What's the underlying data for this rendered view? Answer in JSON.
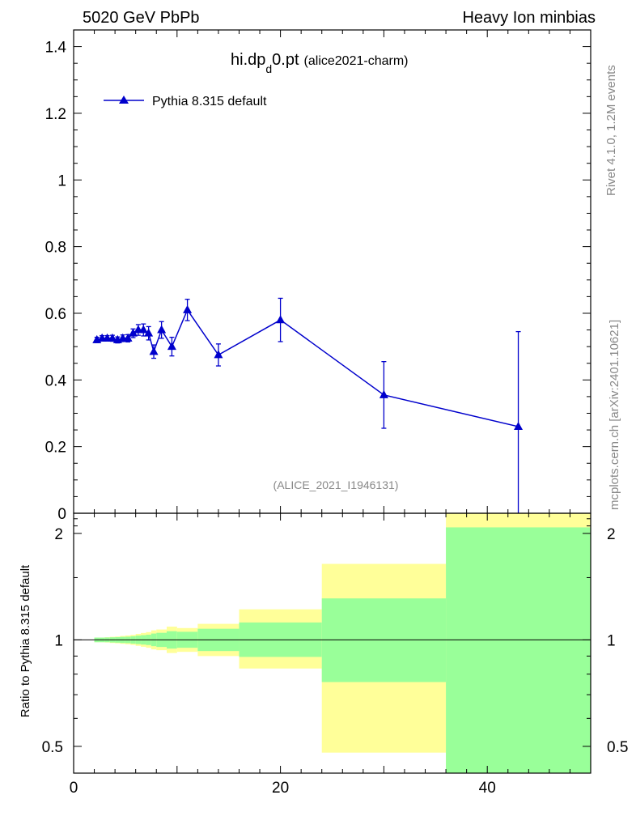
{
  "header": {
    "left_label": "5020 GeV PbPb",
    "right_label": "Heavy Ion minbias"
  },
  "side_labels": {
    "rivet": "Rivet 4.1.0,  1.2M events",
    "mcplots": "mcplots.cern.ch [arXiv:2401.10621]"
  },
  "colors": {
    "series": "#0000cc",
    "band_outer": "#ffff99",
    "band_inner": "#99ff99",
    "watermark": "#888888"
  },
  "chart_data": [
    {
      "type": "line",
      "title_main": "hi.dp",
      "title_sub": "d",
      "title_end": "0.pt",
      "title_tag": "(alice2021-charm)",
      "watermark": "(ALICE_2021_I1946131)",
      "xlim": [
        0,
        50
      ],
      "ylim": [
        0,
        1.45
      ],
      "yticks": [
        0,
        0.2,
        0.4,
        0.6,
        0.8,
        1,
        1.2,
        1.4
      ],
      "ytick_labels": [
        "0",
        "0.2",
        "0.4",
        "0.6",
        "0.8",
        "1",
        "1.2",
        "1.4"
      ],
      "legend_position": "top-left",
      "series": [
        {
          "name": "Pythia 8.315 default",
          "marker": "triangle",
          "x": [
            2.25,
            2.75,
            3.25,
            3.75,
            4.25,
            4.75,
            5.25,
            5.75,
            6.25,
            6.75,
            7.25,
            7.75,
            8.5,
            9.5,
            11,
            14,
            20,
            30,
            43
          ],
          "y": [
            0.52,
            0.525,
            0.525,
            0.525,
            0.52,
            0.525,
            0.525,
            0.54,
            0.55,
            0.55,
            0.54,
            0.485,
            0.55,
            0.5,
            0.61,
            0.475,
            0.58,
            0.355,
            0.26
          ],
          "err": [
            0.008,
            0.008,
            0.008,
            0.009,
            0.009,
            0.01,
            0.011,
            0.013,
            0.016,
            0.018,
            0.02,
            0.02,
            0.025,
            0.028,
            0.032,
            0.033,
            0.065,
            0.1,
            0.285
          ]
        }
      ]
    },
    {
      "type": "area",
      "ylabel": "Ratio to Pythia 8.315 default",
      "xlim": [
        0,
        50
      ],
      "ylim": [
        0.42,
        2.28
      ],
      "yscale": "log",
      "yticks": [
        0.5,
        1,
        2
      ],
      "ytick_labels": [
        "0.5",
        "1",
        "2"
      ],
      "xticks": [
        0,
        20,
        40
      ],
      "xtick_labels": [
        "0",
        "20",
        "40"
      ],
      "reference_line": 1,
      "bins": [
        {
          "lo": 2,
          "hi": 2.5,
          "inner": [
            0.985,
            1.015
          ],
          "outer": [
            0.985,
            1.015
          ]
        },
        {
          "lo": 2.5,
          "hi": 3,
          "inner": [
            0.985,
            1.015
          ],
          "outer": [
            0.985,
            1.015
          ]
        },
        {
          "lo": 3,
          "hi": 3.5,
          "inner": [
            0.985,
            1.016
          ],
          "outer": [
            0.983,
            1.017
          ]
        },
        {
          "lo": 3.5,
          "hi": 4,
          "inner": [
            0.983,
            1.017
          ],
          "outer": [
            0.98,
            1.02
          ]
        },
        {
          "lo": 4,
          "hi": 4.5,
          "inner": [
            0.982,
            1.018
          ],
          "outer": [
            0.978,
            1.022
          ]
        },
        {
          "lo": 4.5,
          "hi": 5,
          "inner": [
            0.98,
            1.02
          ],
          "outer": [
            0.975,
            1.026
          ]
        },
        {
          "lo": 5,
          "hi": 5.5,
          "inner": [
            0.979,
            1.021
          ],
          "outer": [
            0.972,
            1.029
          ]
        },
        {
          "lo": 5.5,
          "hi": 6,
          "inner": [
            0.976,
            1.024
          ],
          "outer": [
            0.968,
            1.033
          ]
        },
        {
          "lo": 6,
          "hi": 6.5,
          "inner": [
            0.973,
            1.028
          ],
          "outer": [
            0.962,
            1.04
          ]
        },
        {
          "lo": 6.5,
          "hi": 7,
          "inner": [
            0.97,
            1.031
          ],
          "outer": [
            0.956,
            1.046
          ]
        },
        {
          "lo": 7,
          "hi": 7.5,
          "inner": [
            0.967,
            1.034
          ],
          "outer": [
            0.95,
            1.052
          ]
        },
        {
          "lo": 7.5,
          "hi": 8,
          "inner": [
            0.96,
            1.042
          ],
          "outer": [
            0.94,
            1.064
          ]
        },
        {
          "lo": 8,
          "hi": 9,
          "inner": [
            0.955,
            1.047
          ],
          "outer": [
            0.935,
            1.07
          ]
        },
        {
          "lo": 9,
          "hi": 10,
          "inner": [
            0.945,
            1.058
          ],
          "outer": [
            0.918,
            1.09
          ]
        },
        {
          "lo": 10,
          "hi": 12,
          "inner": [
            0.95,
            1.054
          ],
          "outer": [
            0.925,
            1.08
          ]
        },
        {
          "lo": 12,
          "hi": 16,
          "inner": [
            0.93,
            1.075
          ],
          "outer": [
            0.9,
            1.11
          ]
        },
        {
          "lo": 16,
          "hi": 24,
          "inner": [
            0.895,
            1.12
          ],
          "outer": [
            0.83,
            1.22
          ]
        },
        {
          "lo": 24,
          "hi": 36,
          "inner": [
            0.76,
            1.31
          ],
          "outer": [
            0.48,
            1.64
          ]
        },
        {
          "lo": 36,
          "hi": 50,
          "inner": [
            0.42,
            2.08
          ],
          "outer": [
            0.42,
            2.28
          ]
        }
      ]
    }
  ]
}
